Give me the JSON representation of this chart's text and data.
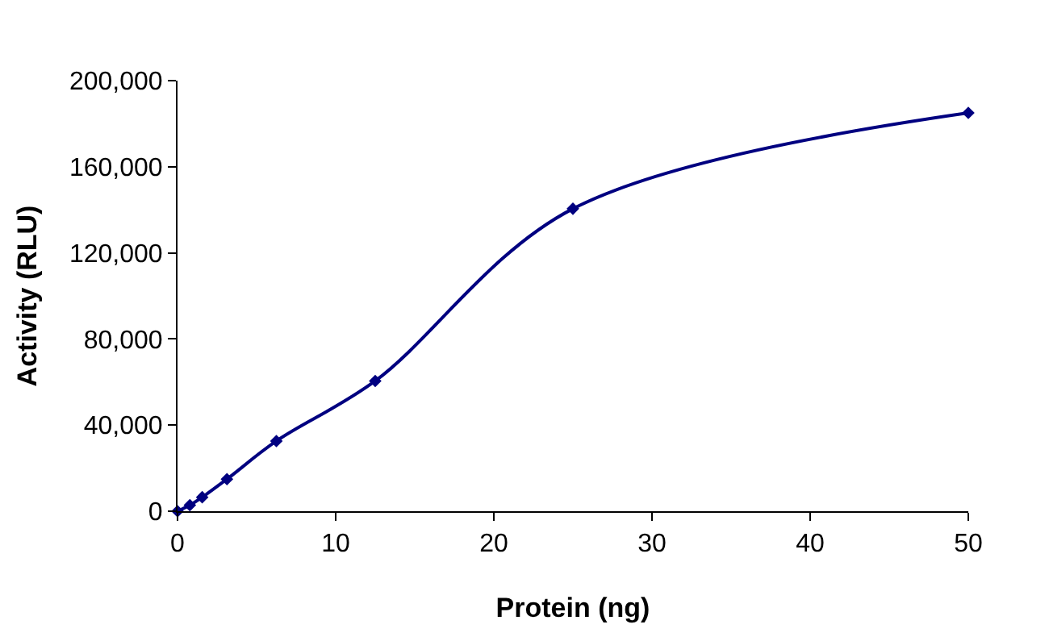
{
  "chart_data": {
    "type": "line",
    "xlabel": "Protein (ng)",
    "ylabel": "Activity (RLU)",
    "x": [
      0,
      0.78,
      1.56,
      3.125,
      6.25,
      12.5,
      25,
      50
    ],
    "series": [
      {
        "color": "#000080",
        "values": [
          0,
          2800,
          6500,
          14900,
          32600,
          60500,
          140500,
          185000
        ]
      }
    ],
    "xlim": [
      0,
      50
    ],
    "xticks": [
      0,
      10,
      20,
      30,
      40,
      50
    ],
    "ylim": [
      0,
      200000
    ],
    "yticks": [
      {
        "value": 0,
        "label": "0"
      },
      {
        "value": 40000,
        "label": "40,000"
      },
      {
        "value": 80000,
        "label": "80,000"
      },
      {
        "value": 120000,
        "label": "120,000"
      },
      {
        "value": 160000,
        "label": "160,000"
      },
      {
        "value": 200000,
        "label": "200,000"
      }
    ],
    "marker": "diamond",
    "line_style": "solid"
  }
}
